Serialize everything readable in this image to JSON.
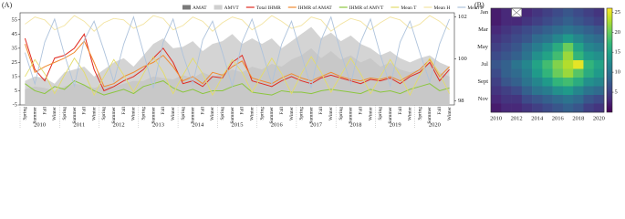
{
  "chart_data": [
    {
      "type": "combo",
      "panel": "(A)",
      "categories": [
        "Spring",
        "Summer",
        "Fall",
        "Winter",
        "Spring",
        "Summer",
        "Fall",
        "Winter",
        "Spring",
        "Summer",
        "Fall",
        "Winter",
        "Spring",
        "Summer",
        "Fall",
        "Winter",
        "Spring",
        "Summer",
        "Fall",
        "Winter",
        "Spring",
        "Summer",
        "Fall",
        "Winter",
        "Spring",
        "Summer",
        "Fall",
        "Winter",
        "Spring",
        "Summer",
        "Fall",
        "Winter",
        "Spring",
        "Summer",
        "Fall",
        "Winter",
        "Spring",
        "Summer",
        "Fall",
        "Winter",
        "Spring",
        "Summer",
        "Fall",
        "Winter"
      ],
      "groups": [
        "2010",
        "2011",
        "2012",
        "2013",
        "2014",
        "2015",
        "2016",
        "2017",
        "2018",
        "2019",
        "2020"
      ],
      "ylim": [
        -5,
        60
      ],
      "yticks": [
        -5,
        5,
        15,
        25,
        35,
        45,
        55
      ],
      "y2lim": [
        97.8,
        102.2
      ],
      "y2ticks": [
        98,
        100,
        102
      ],
      "series": [
        {
          "name": "AMAT",
          "kind": "area",
          "color": "#7a7a7a",
          "values": [
            6,
            8,
            7,
            5,
            8,
            10,
            9,
            7,
            9,
            8,
            10,
            12,
            12,
            15,
            14,
            13,
            16,
            14,
            18,
            15,
            17,
            20,
            18,
            22,
            20,
            24,
            22,
            27,
            30,
            35,
            28,
            33,
            27,
            30,
            25,
            28,
            22,
            25,
            20,
            18,
            20,
            24,
            18,
            15
          ]
        },
        {
          "name": "AMVT",
          "kind": "area",
          "color": "#cfcfcf",
          "values": [
            12,
            15,
            14,
            10,
            18,
            20,
            22,
            15,
            20,
            25,
            28,
            22,
            30,
            38,
            42,
            35,
            36,
            40,
            33,
            38,
            40,
            45,
            38,
            42,
            38,
            42,
            35,
            40,
            45,
            50,
            42,
            46,
            40,
            44,
            38,
            35,
            30,
            33,
            28,
            25,
            28,
            30,
            25,
            22
          ]
        },
        {
          "name": "Total IHMR",
          "kind": "line",
          "color": "#e02a20",
          "values": [
            42,
            20,
            12,
            28,
            30,
            35,
            45,
            20,
            5,
            8,
            12,
            15,
            20,
            28,
            35,
            25,
            10,
            12,
            8,
            15,
            14,
            25,
            30,
            12,
            10,
            8,
            12,
            15,
            12,
            10,
            14,
            16,
            14,
            12,
            10,
            13,
            12,
            14,
            10,
            15,
            18,
            25,
            12,
            20
          ]
        },
        {
          "name": "IHMR of AMAT",
          "kind": "line",
          "color": "#f08a30",
          "values": [
            38,
            18,
            22,
            25,
            28,
            32,
            40,
            25,
            8,
            10,
            15,
            18,
            22,
            25,
            30,
            22,
            12,
            15,
            10,
            18,
            16,
            22,
            26,
            14,
            12,
            10,
            14,
            17,
            14,
            12,
            15,
            18,
            15,
            13,
            12,
            14,
            13,
            15,
            12,
            16,
            20,
            27,
            15,
            22
          ]
        },
        {
          "name": "IHMR of AMVT",
          "kind": "line",
          "color": "#8cc63f",
          "values": [
            10,
            5,
            3,
            8,
            6,
            12,
            9,
            5,
            2,
            4,
            6,
            3,
            8,
            10,
            12,
            7,
            4,
            6,
            3,
            5,
            5,
            8,
            10,
            4,
            3,
            2,
            5,
            4,
            4,
            3,
            5,
            6,
            5,
            4,
            3,
            6,
            4,
            5,
            3,
            6,
            8,
            10,
            5,
            7
          ]
        },
        {
          "name": "Mean T",
          "kind": "line",
          "color": "#e3dc6a",
          "values": [
            15,
            27,
            17,
            3,
            16,
            28,
            18,
            2,
            15,
            27,
            16,
            4,
            17,
            29,
            18,
            3,
            16,
            28,
            17,
            2,
            15,
            27,
            18,
            4,
            16,
            28,
            17,
            3,
            17,
            29,
            18,
            4,
            16,
            28,
            17,
            3,
            15,
            27,
            16,
            2,
            16,
            28,
            17,
            3
          ]
        },
        {
          "name": "Mean H",
          "kind": "line",
          "color": "#f3e4a2",
          "values": [
            52,
            57,
            55,
            48,
            51,
            58,
            54,
            47,
            53,
            56,
            55,
            49,
            52,
            58,
            56,
            48,
            51,
            57,
            54,
            47,
            53,
            57,
            55,
            48,
            52,
            58,
            54,
            49,
            51,
            57,
            55,
            47,
            52,
            56,
            54,
            48,
            53,
            57,
            55,
            49,
            52,
            58,
            54,
            48
          ]
        },
        {
          "name": "Mean P",
          "kind": "line",
          "axis": "y2",
          "color": "#aec3dc",
          "values": [
            100.3,
            98.8,
            100.8,
            101.9,
            100.2,
            98.7,
            100.9,
            101.8,
            100.4,
            98.9,
            100.7,
            102,
            100.3,
            98.6,
            100.8,
            101.9,
            100.2,
            98.8,
            100.9,
            101.8,
            100.3,
            98.7,
            100.8,
            101.9,
            100.4,
            98.8,
            100.7,
            101.8,
            100.2,
            98.6,
            100.9,
            102,
            100.3,
            98.8,
            100.8,
            101.9,
            100.2,
            98.7,
            100.8,
            101.8,
            100.3,
            98.9,
            100.7,
            101.9
          ]
        }
      ]
    },
    {
      "type": "heatmap",
      "panel": "(B)",
      "rows": [
        "Jan",
        null,
        "Mar",
        null,
        "May",
        null,
        "Jul",
        null,
        "Sept",
        null,
        "Nov",
        null
      ],
      "columns": [
        "2010",
        null,
        "2012",
        null,
        "2014",
        null,
        "2016",
        null,
        "2018",
        null,
        "2020"
      ],
      "colormap": "viridis",
      "zlim": [
        0,
        26
      ],
      "zticks": [
        5,
        10,
        15,
        20,
        25
      ],
      "values": [
        [
          2,
          3,
          null,
          3,
          4,
          5,
          6,
          7,
          6,
          5,
          4
        ],
        [
          2,
          3,
          3,
          4,
          5,
          6,
          7,
          8,
          7,
          6,
          5
        ],
        [
          3,
          4,
          5,
          6,
          7,
          8,
          9,
          10,
          9,
          8,
          7
        ],
        [
          4,
          5,
          6,
          7,
          9,
          10,
          12,
          14,
          12,
          10,
          9
        ],
        [
          5,
          6,
          7,
          9,
          11,
          13,
          16,
          20,
          15,
          12,
          11
        ],
        [
          6,
          7,
          8,
          10,
          13,
          15,
          18,
          22,
          17,
          14,
          13
        ],
        [
          7,
          8,
          10,
          12,
          15,
          18,
          21,
          23,
          25,
          17,
          15
        ],
        [
          6,
          8,
          9,
          11,
          14,
          17,
          20,
          22,
          19,
          16,
          14
        ],
        [
          5,
          7,
          8,
          10,
          12,
          14,
          17,
          18,
          16,
          13,
          12
        ],
        [
          4,
          5,
          6,
          8,
          10,
          11,
          13,
          14,
          12,
          10,
          9
        ],
        [
          3,
          4,
          4,
          6,
          7,
          8,
          9,
          10,
          9,
          7,
          6
        ],
        [
          2,
          3,
          3,
          4,
          5,
          6,
          7,
          8,
          7,
          5,
          4
        ]
      ]
    }
  ]
}
